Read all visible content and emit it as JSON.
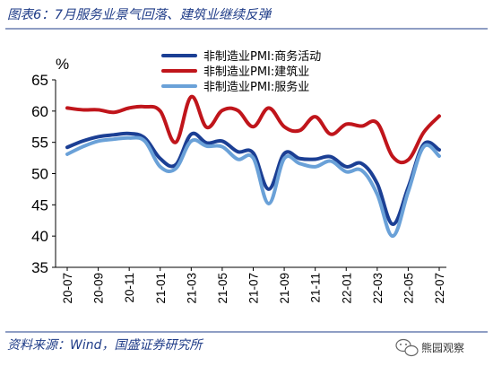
{
  "title": "图表6：7月服务业景气回落、建筑业继续反弹",
  "source": "资料来源：Wind，国盛证券研究所",
  "watermark": "熊园观察",
  "colors": {
    "title": "#1f3c88",
    "business": "#1b3f94",
    "construction": "#c0151b",
    "services": "#6aa1d8",
    "rule": "#1f3c88"
  },
  "chart_data": {
    "type": "line",
    "unit": "%",
    "ylim": [
      35,
      65
    ],
    "yticks": [
      35,
      40,
      45,
      50,
      55,
      60,
      65
    ],
    "xticks": [
      "20-07",
      "20-09",
      "20-11",
      "21-01",
      "21-03",
      "21-05",
      "21-07",
      "21-09",
      "21-11",
      "22-01",
      "22-03",
      "22-05",
      "22-07"
    ],
    "x": [
      "20-07",
      "20-08",
      "20-09",
      "20-10",
      "20-11",
      "20-12",
      "21-01",
      "21-02",
      "21-03",
      "21-04",
      "21-05",
      "21-06",
      "21-07",
      "21-08",
      "21-09",
      "21-10",
      "21-11",
      "21-12",
      "22-01",
      "22-02",
      "22-03",
      "22-04",
      "22-05",
      "22-06",
      "22-07"
    ],
    "legend_position": "top-center",
    "series": [
      {
        "name": "非制造业PMI:商务活动",
        "color": "#1b3f94",
        "values": [
          54.2,
          55.2,
          55.9,
          56.2,
          56.4,
          55.7,
          52.4,
          51.4,
          56.3,
          54.9,
          55.2,
          53.5,
          53.3,
          47.5,
          53.2,
          52.4,
          52.3,
          52.7,
          51.1,
          51.6,
          48.4,
          41.9,
          47.8,
          54.7,
          53.8
        ]
      },
      {
        "name": "非制造业PMI:建筑业",
        "color": "#c0151b",
        "values": [
          60.5,
          60.2,
          60.2,
          59.8,
          60.5,
          60.7,
          60.0,
          55.0,
          62.3,
          57.4,
          60.1,
          60.1,
          57.5,
          60.5,
          57.5,
          56.9,
          59.1,
          56.3,
          57.9,
          57.6,
          58.1,
          52.7,
          52.2,
          56.6,
          59.2
        ]
      },
      {
        "name": "非制造业PMI:服务业",
        "color": "#6aa1d8",
        "values": [
          53.1,
          54.3,
          55.2,
          55.5,
          55.7,
          55.2,
          51.1,
          50.8,
          55.2,
          54.4,
          54.3,
          52.3,
          52.5,
          45.2,
          52.4,
          51.6,
          51.1,
          52.0,
          50.3,
          50.5,
          46.7,
          40.0,
          47.1,
          54.3,
          52.8
        ]
      }
    ]
  }
}
